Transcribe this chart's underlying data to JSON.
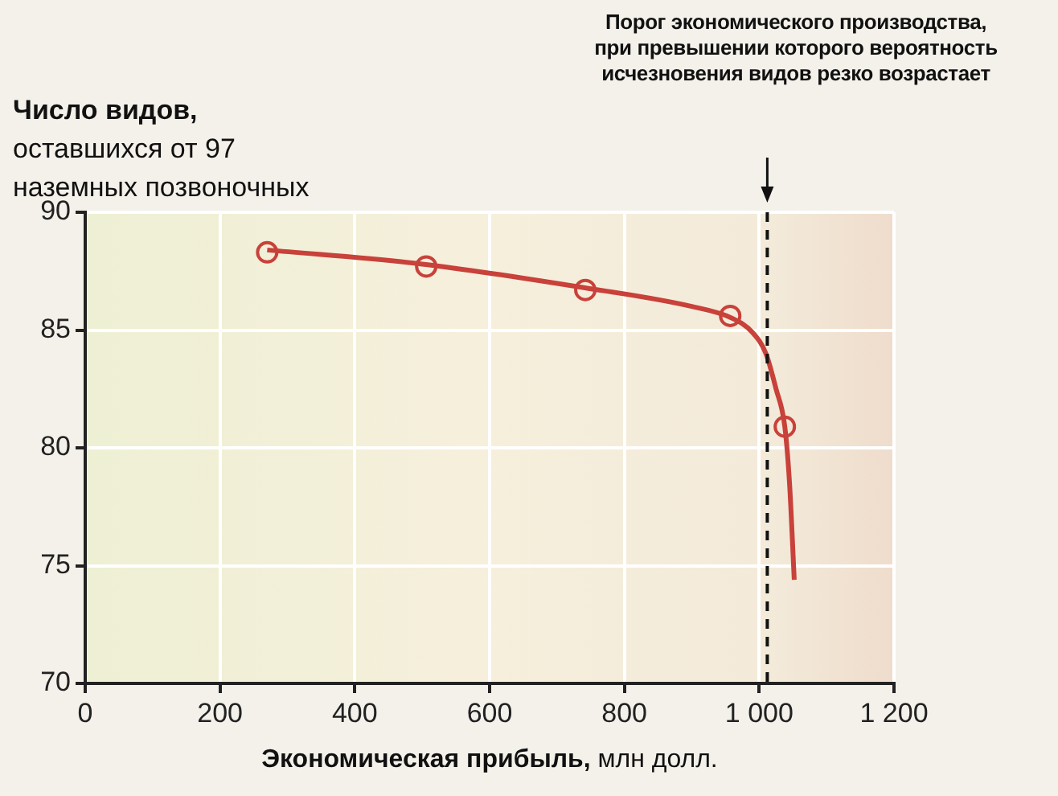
{
  "chart_data": {
    "type": "line",
    "ylabel": "Число видов, оставшихся от 97 наземных позвоночных",
    "xlabel": "Экономическая прибыль, млн долл.",
    "xlim": [
      0,
      1200
    ],
    "xticks": [
      0,
      200,
      400,
      600,
      800,
      {
        "value": 1000,
        "label": "1 000"
      },
      {
        "value": 1200,
        "label": "1 200"
      }
    ],
    "ylim": [
      70,
      90
    ],
    "yticks": [
      70,
      75,
      80,
      85,
      90
    ],
    "grid": true,
    "legend": false,
    "series": [
      {
        "color": "#c8413a",
        "marker": "none",
        "x": [
          270,
          500,
          740,
          900,
          960,
          990,
          1010,
          1025,
          1038,
          1045,
          1052
        ],
        "values": [
          88.4,
          87.8,
          86.8,
          86.0,
          85.5,
          84.9,
          84.0,
          82.5,
          80.9,
          78.5,
          74.4
        ]
      },
      {
        "type": "scatter",
        "color": "#c8413a",
        "marker": "circle",
        "x": [
          270,
          506,
          742,
          957,
          1038
        ],
        "values": [
          88.3,
          87.7,
          86.7,
          85.6,
          80.9
        ]
      }
    ],
    "ref_lines": [
      {
        "axis": "x",
        "value": 1012,
        "label": "Порог экономического производства, при превышении которого вероятность исчезновения видов резко возрастает",
        "color": "#111111",
        "line_style": "dashed"
      }
    ]
  }
}
